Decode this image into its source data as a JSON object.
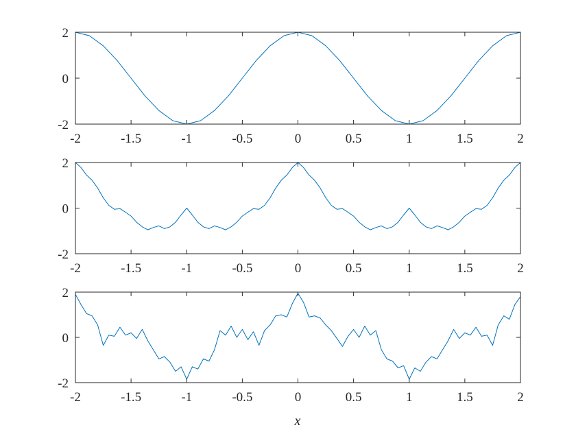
{
  "chart_data": [
    {
      "type": "line",
      "xlim": [
        -2,
        2
      ],
      "ylim": [
        -2,
        2
      ],
      "xticks": [
        "-2",
        "-1.5",
        "-1",
        "-0.5",
        "0",
        "0.5",
        "1",
        "1.5",
        "2"
      ],
      "yticks": [
        "-2",
        "0",
        "2"
      ],
      "xlabel": "",
      "series": [
        {
          "color": "#0072BD",
          "x": [
            -2,
            -1.875,
            -1.75,
            -1.625,
            -1.5,
            -1.375,
            -1.25,
            -1.125,
            -1,
            -0.875,
            -0.75,
            -0.625,
            -0.5,
            -0.375,
            -0.25,
            -0.125,
            0,
            0.125,
            0.25,
            0.375,
            0.5,
            0.625,
            0.75,
            0.875,
            1,
            1.125,
            1.25,
            1.375,
            1.5,
            1.625,
            1.75,
            1.875,
            2
          ],
          "y": [
            2,
            1.85,
            1.41,
            0.77,
            0,
            -0.77,
            -1.41,
            -1.85,
            -2,
            -1.85,
            -1.41,
            -0.77,
            0,
            0.77,
            1.41,
            1.85,
            2,
            1.85,
            1.41,
            0.77,
            0,
            -0.77,
            -1.41,
            -1.85,
            -2,
            -1.85,
            -1.41,
            -0.77,
            0,
            0.77,
            1.41,
            1.85,
            2
          ]
        }
      ]
    },
    {
      "type": "line",
      "xlim": [
        -2,
        2
      ],
      "ylim": [
        -2,
        2
      ],
      "xticks": [
        "-2",
        "-1.5",
        "-1",
        "-0.5",
        "0",
        "0.5",
        "1",
        "1.5",
        "2"
      ],
      "yticks": [
        "-2",
        "0",
        "2"
      ],
      "xlabel": "",
      "series": [
        {
          "color": "#0072BD",
          "x": [
            -2,
            -1.95,
            -1.9,
            -1.85,
            -1.8,
            -1.75,
            -1.7,
            -1.65,
            -1.6,
            -1.55,
            -1.5,
            -1.45,
            -1.4,
            -1.35,
            -1.3,
            -1.25,
            -1.2,
            -1.15,
            -1.1,
            -1.05,
            -1,
            -0.95,
            -0.9,
            -0.85,
            -0.8,
            -0.75,
            -0.7,
            -0.65,
            -0.6,
            -0.55,
            -0.5,
            -0.45,
            -0.4,
            -0.35,
            -0.3,
            -0.25,
            -0.2,
            -0.15,
            -0.1,
            -0.05,
            0,
            0.05,
            0.1,
            0.15,
            0.2,
            0.25,
            0.3,
            0.35,
            0.4,
            0.45,
            0.5,
            0.55,
            0.6,
            0.65,
            0.7,
            0.75,
            0.8,
            0.85,
            0.9,
            0.95,
            1,
            1.05,
            1.1,
            1.15,
            1.2,
            1.25,
            1.3,
            1.35,
            1.4,
            1.45,
            1.5,
            1.55,
            1.6,
            1.65,
            1.7,
            1.75,
            1.8,
            1.85,
            1.9,
            1.95,
            2
          ],
          "y": [
            2,
            1.78,
            1.45,
            1.22,
            0.88,
            0.45,
            0.12,
            -0.05,
            -0.02,
            -0.18,
            -0.35,
            -0.62,
            -0.82,
            -0.95,
            -0.85,
            -0.78,
            -0.9,
            -0.82,
            -0.62,
            -0.3,
            0,
            -0.3,
            -0.62,
            -0.82,
            -0.9,
            -0.78,
            -0.85,
            -0.95,
            -0.82,
            -0.62,
            -0.35,
            -0.18,
            -0.02,
            -0.05,
            0.12,
            0.45,
            0.88,
            1.22,
            1.45,
            1.78,
            2,
            1.78,
            1.45,
            1.22,
            0.88,
            0.45,
            0.12,
            -0.05,
            -0.02,
            -0.18,
            -0.35,
            -0.62,
            -0.82,
            -0.95,
            -0.85,
            -0.78,
            -0.9,
            -0.82,
            -0.62,
            -0.3,
            0,
            -0.3,
            -0.62,
            -0.82,
            -0.9,
            -0.78,
            -0.85,
            -0.95,
            -0.82,
            -0.62,
            -0.35,
            -0.18,
            -0.02,
            -0.05,
            0.12,
            0.45,
            0.88,
            1.22,
            1.45,
            1.78,
            2
          ]
        }
      ]
    },
    {
      "type": "line",
      "xlim": [
        -2,
        2
      ],
      "ylim": [
        -2,
        2
      ],
      "xticks": [
        "-2",
        "-1.5",
        "-1",
        "-0.5",
        "0",
        "0.5",
        "1",
        "1.5",
        "2"
      ],
      "yticks": [
        "-2",
        "0",
        "2"
      ],
      "xlabel": "x",
      "series": [
        {
          "color": "#0072BD",
          "x": [
            -2,
            -1.95,
            -1.9,
            -1.85,
            -1.8,
            -1.75,
            -1.7,
            -1.65,
            -1.6,
            -1.55,
            -1.5,
            -1.45,
            -1.4,
            -1.35,
            -1.3,
            -1.25,
            -1.2,
            -1.15,
            -1.1,
            -1.05,
            -1,
            -0.95,
            -0.9,
            -0.85,
            -0.8,
            -0.75,
            -0.7,
            -0.65,
            -0.6,
            -0.55,
            -0.5,
            -0.45,
            -0.4,
            -0.35,
            -0.3,
            -0.25,
            -0.2,
            -0.15,
            -0.1,
            -0.05,
            0,
            0.05,
            0.1,
            0.15,
            0.2,
            0.25,
            0.3,
            0.35,
            0.4,
            0.45,
            0.5,
            0.55,
            0.6,
            0.65,
            0.7,
            0.75,
            0.8,
            0.85,
            0.9,
            0.95,
            1,
            1.05,
            1.1,
            1.15,
            1.2,
            1.25,
            1.3,
            1.35,
            1.4,
            1.45,
            1.5,
            1.55,
            1.6,
            1.65,
            1.7,
            1.75,
            1.8,
            1.85,
            1.9,
            1.95,
            2
          ],
          "y": [
            1.9,
            1.45,
            1.05,
            0.95,
            0.55,
            -0.35,
            0.1,
            0.05,
            0.45,
            0.1,
            0.2,
            -0.05,
            0.35,
            -0.15,
            -0.55,
            -0.95,
            -0.85,
            -1.1,
            -1.5,
            -1.3,
            -1.85,
            -1.3,
            -1.4,
            -0.95,
            -1.05,
            -0.55,
            0.3,
            0.1,
            0.5,
            0.0,
            0.35,
            -0.1,
            0.25,
            -0.35,
            0.3,
            0.55,
            0.95,
            1.0,
            0.9,
            1.5,
            1.95,
            1.55,
            0.9,
            0.95,
            0.85,
            0.55,
            0.3,
            -0.05,
            -0.4,
            0.05,
            0.35,
            0.0,
            0.5,
            0.1,
            0.3,
            -0.55,
            -0.95,
            -1.05,
            -1.35,
            -1.25,
            -1.85,
            -1.35,
            -1.5,
            -1.1,
            -0.85,
            -0.95,
            -0.55,
            -0.15,
            0.35,
            -0.05,
            0.2,
            0.1,
            0.45,
            0.05,
            0.1,
            -0.35,
            0.55,
            0.95,
            0.8,
            1.45,
            1.8
          ]
        }
      ]
    }
  ]
}
